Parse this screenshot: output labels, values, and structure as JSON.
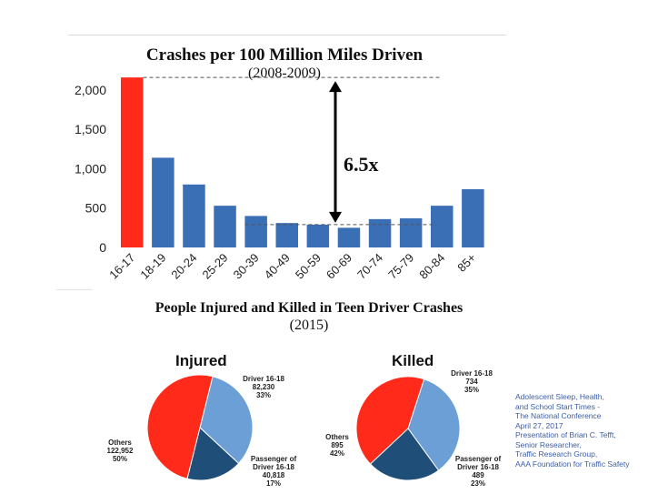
{
  "colors": {
    "highlight": "#ff2a1a",
    "bar": "#3a6fb5",
    "driver": "#6b9fd6",
    "passenger": "#1f4e79",
    "others": "#ff2a1a"
  },
  "chart_data": [
    {
      "type": "bar",
      "title": "Crashes per 100 Million Miles Driven",
      "subtitle": "(2008-2009)",
      "categories": [
        "16-17",
        "18-19",
        "20-24",
        "25-29",
        "30-39",
        "40-49",
        "50-59",
        "60-69",
        "70-74",
        "75-79",
        "80-84",
        "85+"
      ],
      "values": [
        2160,
        1140,
        800,
        530,
        400,
        310,
        290,
        250,
        360,
        370,
        530,
        740
      ],
      "ylim": [
        0,
        2300
      ],
      "yticks": [
        "0",
        "500",
        "1,000",
        "1,500",
        "2,000"
      ],
      "highlight_index": 0,
      "annotation": "6.5x",
      "grid": false
    },
    {
      "type": "pie",
      "title": "Injured",
      "slices": [
        {
          "name": "Driver 16-18",
          "count": "82,230",
          "percent": "33%",
          "value": 33
        },
        {
          "name": "Passenger of Driver 16-18",
          "count": "40,818",
          "percent": "17%",
          "value": 17
        },
        {
          "name": "Others",
          "count": "122,952",
          "percent": "50%",
          "value": 50
        }
      ]
    },
    {
      "type": "pie",
      "title": "Killed",
      "slices": [
        {
          "name": "Driver 16-18",
          "count": "734",
          "percent": "35%",
          "value": 35
        },
        {
          "name": "Passenger of Driver 16-18",
          "count": "489",
          "percent": "23%",
          "value": 23
        },
        {
          "name": "Others",
          "count": "895",
          "percent": "42%",
          "value": 42
        }
      ]
    }
  ],
  "pie_section": {
    "title": "People Injured and Killed in Teen Driver Crashes",
    "subtitle": "(2015)"
  },
  "credit": [
    "Adolescent Sleep, Health,",
    "and School Start Times -",
    "The National Conference",
    "April 27, 2017",
    "Presentation of Brian C. Tefft,",
    "Senior Researcher,",
    "Traffic Research Group,",
    "AAA Foundation for Traffic Safety"
  ]
}
